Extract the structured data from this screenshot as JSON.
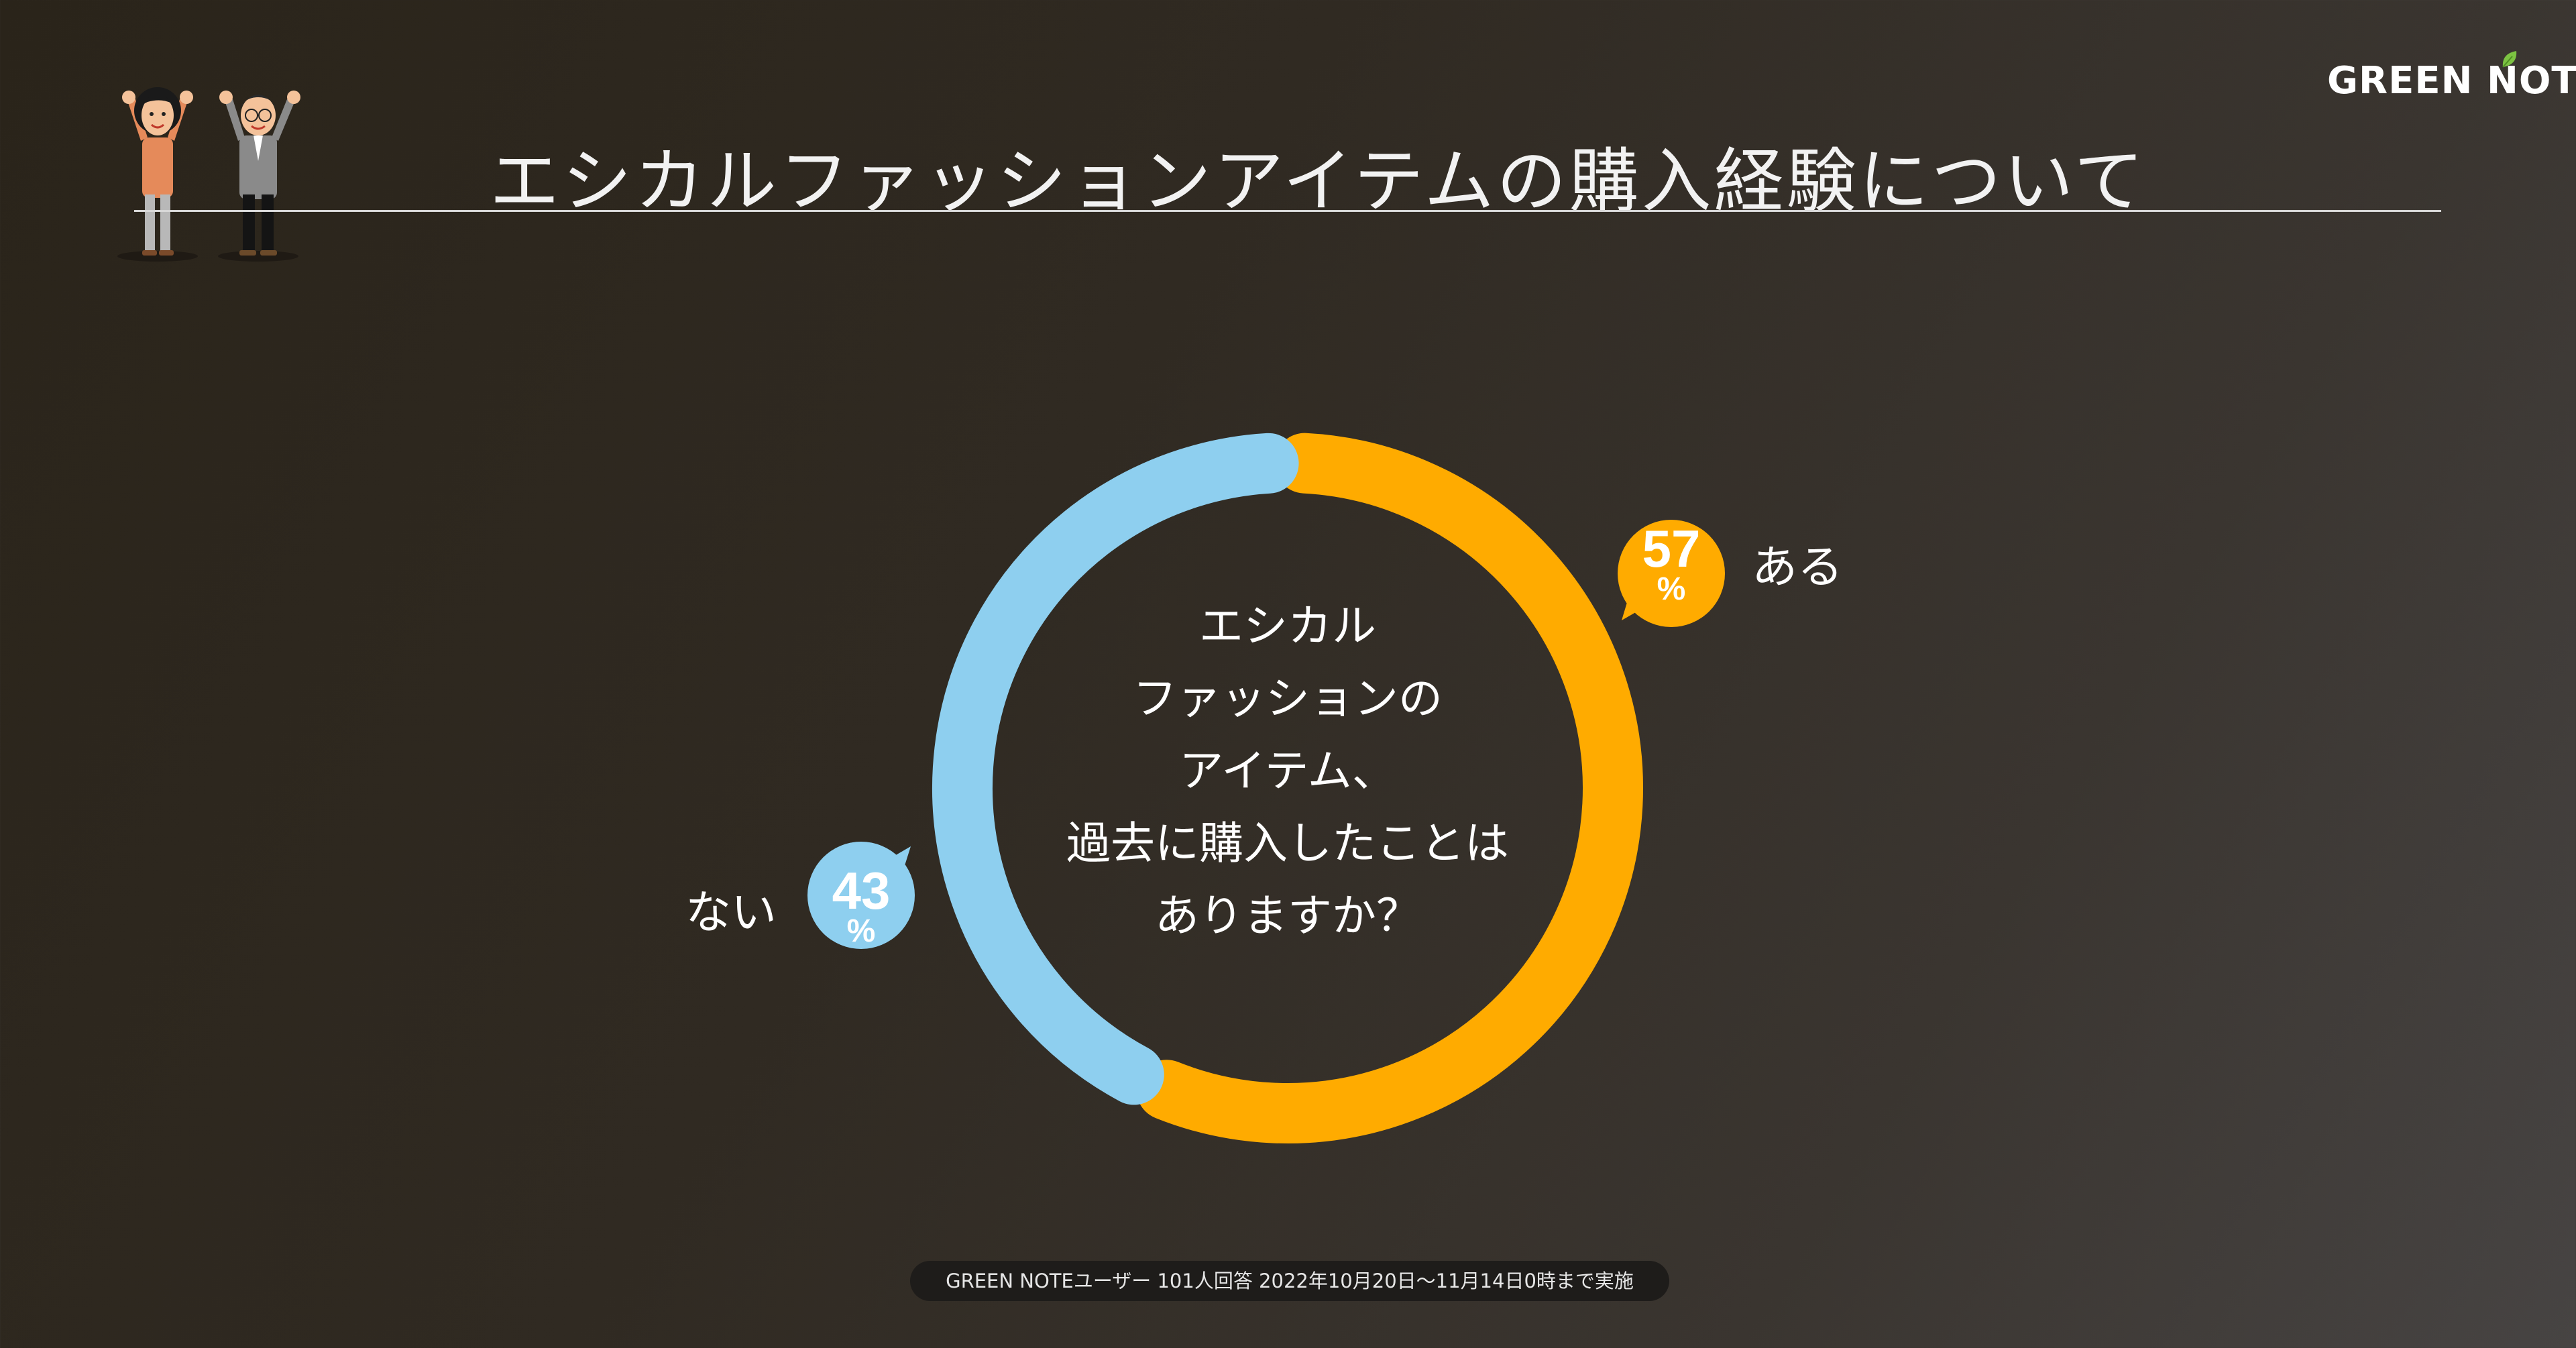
{
  "title": "エシカルファッションアイテムの購入経験について",
  "logo": "GREEN NOTE",
  "chart_data": {
    "type": "pie",
    "style": "donut",
    "center_text": [
      "エシカル",
      "ファッションの",
      "アイテム、",
      "過去に購入したことは",
      "ありますか？"
    ],
    "slices": [
      {
        "label": "ある",
        "value": 57,
        "value_text": "57",
        "unit": "%",
        "color": "#FFAB00"
      },
      {
        "label": "ない",
        "value": 43,
        "value_text": "43",
        "unit": "%",
        "color": "#8ECFEF"
      }
    ]
  },
  "footnote": "GREEN NOTEユーザー 101人回答 2022年10月20日〜11月14日0時まで実施"
}
